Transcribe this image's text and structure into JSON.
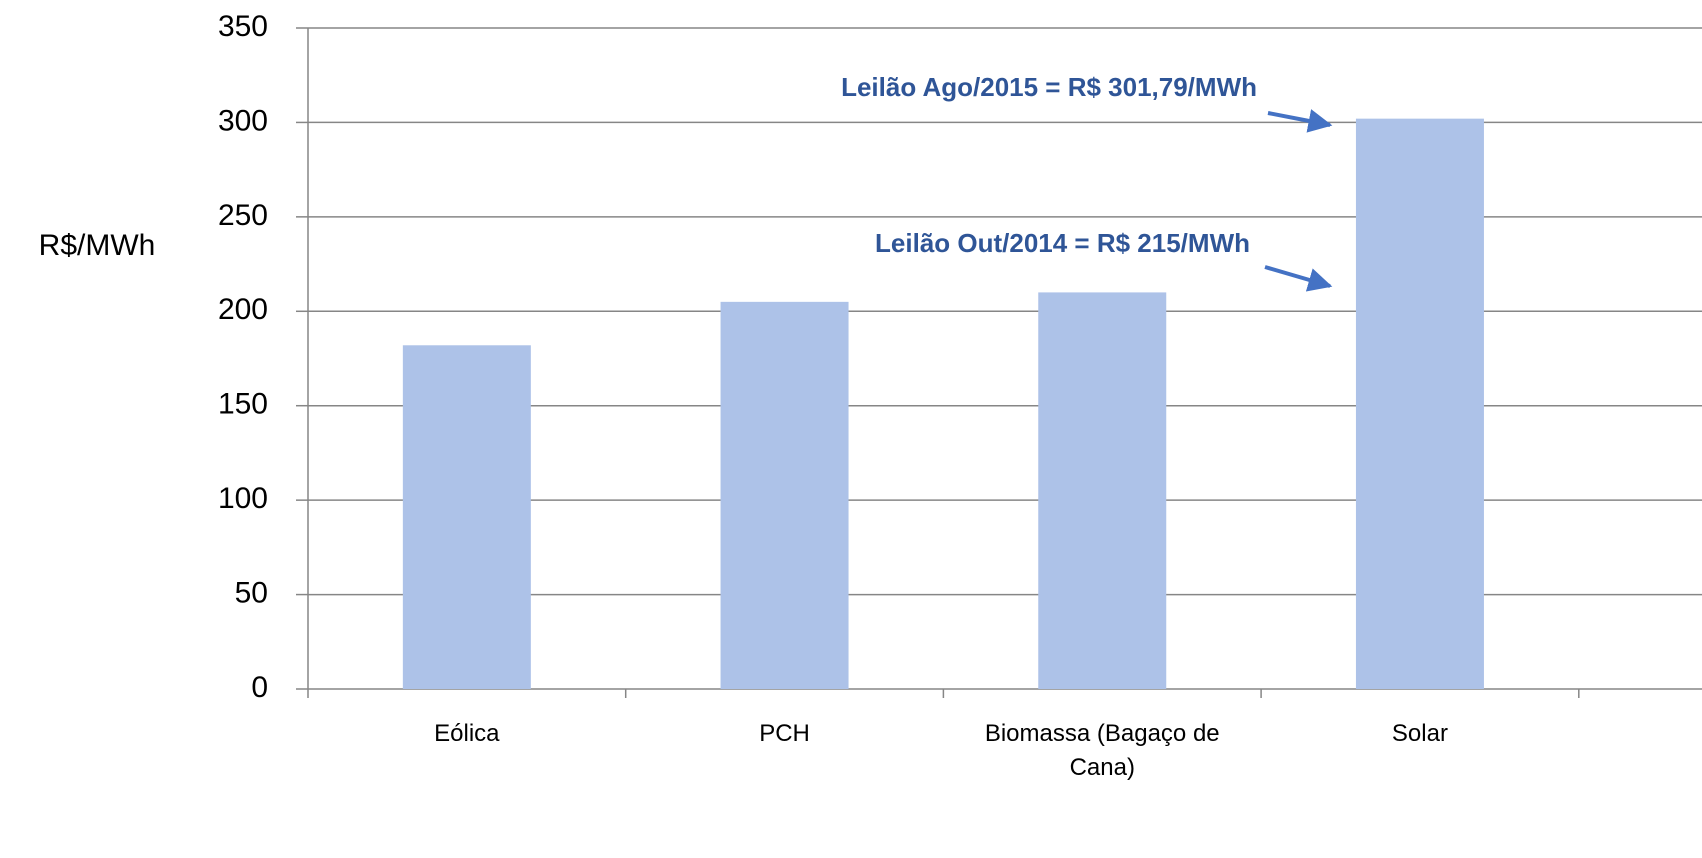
{
  "chart_data": {
    "type": "bar",
    "y_label": "R$/MWh",
    "categories": [
      "Eólica",
      "PCH",
      "Biomassa (Bagaço de Cana)",
      "Solar"
    ],
    "values": [
      182,
      205,
      210,
      302
    ],
    "color": "#adc2e8",
    "ylim": [
      0,
      350
    ],
    "yticks": [
      0,
      50,
      100,
      150,
      200,
      250,
      300,
      350
    ],
    "grid": true,
    "annotations": [
      "Leilão Ago/2015 = R$ 301,79/MWh",
      "Leilão Out/2014 = R$ 215/MWh"
    ]
  }
}
